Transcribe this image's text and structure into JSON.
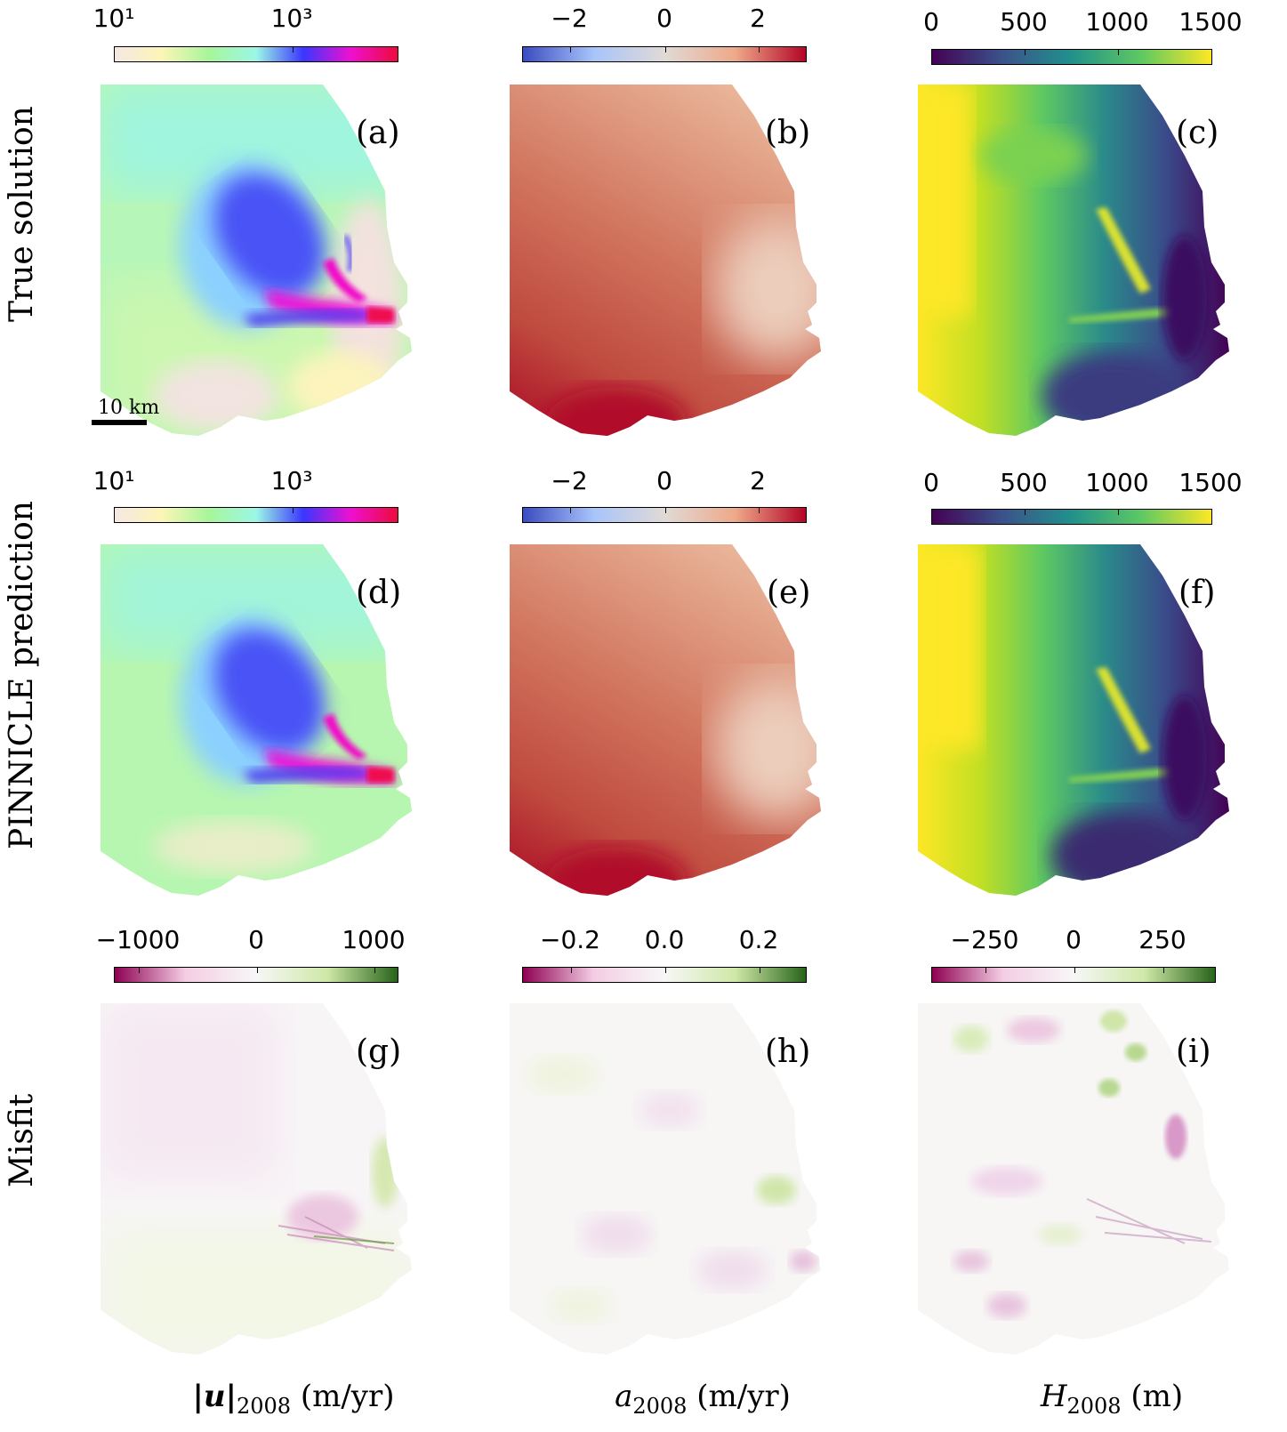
{
  "row_labels": [
    "True solution",
    "PINNICLE prediction",
    "Misfit"
  ],
  "column_labels": {
    "velocity": {
      "prefix": "|u|",
      "sub": "2008",
      "unit": " (m/yr)"
    },
    "smb": {
      "prefix": "a",
      "sub": "2008",
      "unit": " (m/yr)"
    },
    "thickness": {
      "prefix": "H",
      "sub": "2008",
      "unit": " (m)"
    }
  },
  "panel_labels": [
    "(a)",
    "(b)",
    "(c)",
    "(d)",
    "(e)",
    "(f)",
    "(g)",
    "(h)",
    "(i)"
  ],
  "scale_bar": {
    "label": "10 km"
  },
  "colorbars": {
    "velocity_log": {
      "ticks": [
        "10¹",
        "10³"
      ],
      "colors": [
        "#f5e8e2",
        "#fcf5b8",
        "#a8f59a",
        "#9cf7e6",
        "#3a36ff",
        "#ee10d0",
        "#ee0a3c"
      ]
    },
    "smb": {
      "ticks": [
        "−2",
        "0",
        "2"
      ],
      "colors": [
        "#3b4cc0",
        "#a8c4fa",
        "#e0dad6",
        "#eea98a",
        "#b40426"
      ]
    },
    "thickness": {
      "ticks": [
        "0",
        "500",
        "1000",
        "1500"
      ],
      "colors": [
        "#440154",
        "#3b528b",
        "#21918c",
        "#5ec962",
        "#fde725"
      ]
    },
    "misfit_velocity": {
      "ticks": [
        "−1000",
        "0",
        "1000"
      ],
      "colors": [
        "#8e0152",
        "#f4cde4",
        "#f7f7f7",
        "#cfe8a8",
        "#276419"
      ]
    },
    "misfit_smb": {
      "ticks": [
        "−0.2",
        "0.0",
        "0.2"
      ],
      "colors": [
        "#8e0152",
        "#f4cde4",
        "#f7f7f7",
        "#cfe8a8",
        "#276419"
      ]
    },
    "misfit_thickness": {
      "ticks": [
        "−250",
        "0",
        "250"
      ],
      "colors": [
        "#8e0152",
        "#f4cde4",
        "#f7f7f7",
        "#cfe8a8",
        "#276419"
      ]
    }
  }
}
